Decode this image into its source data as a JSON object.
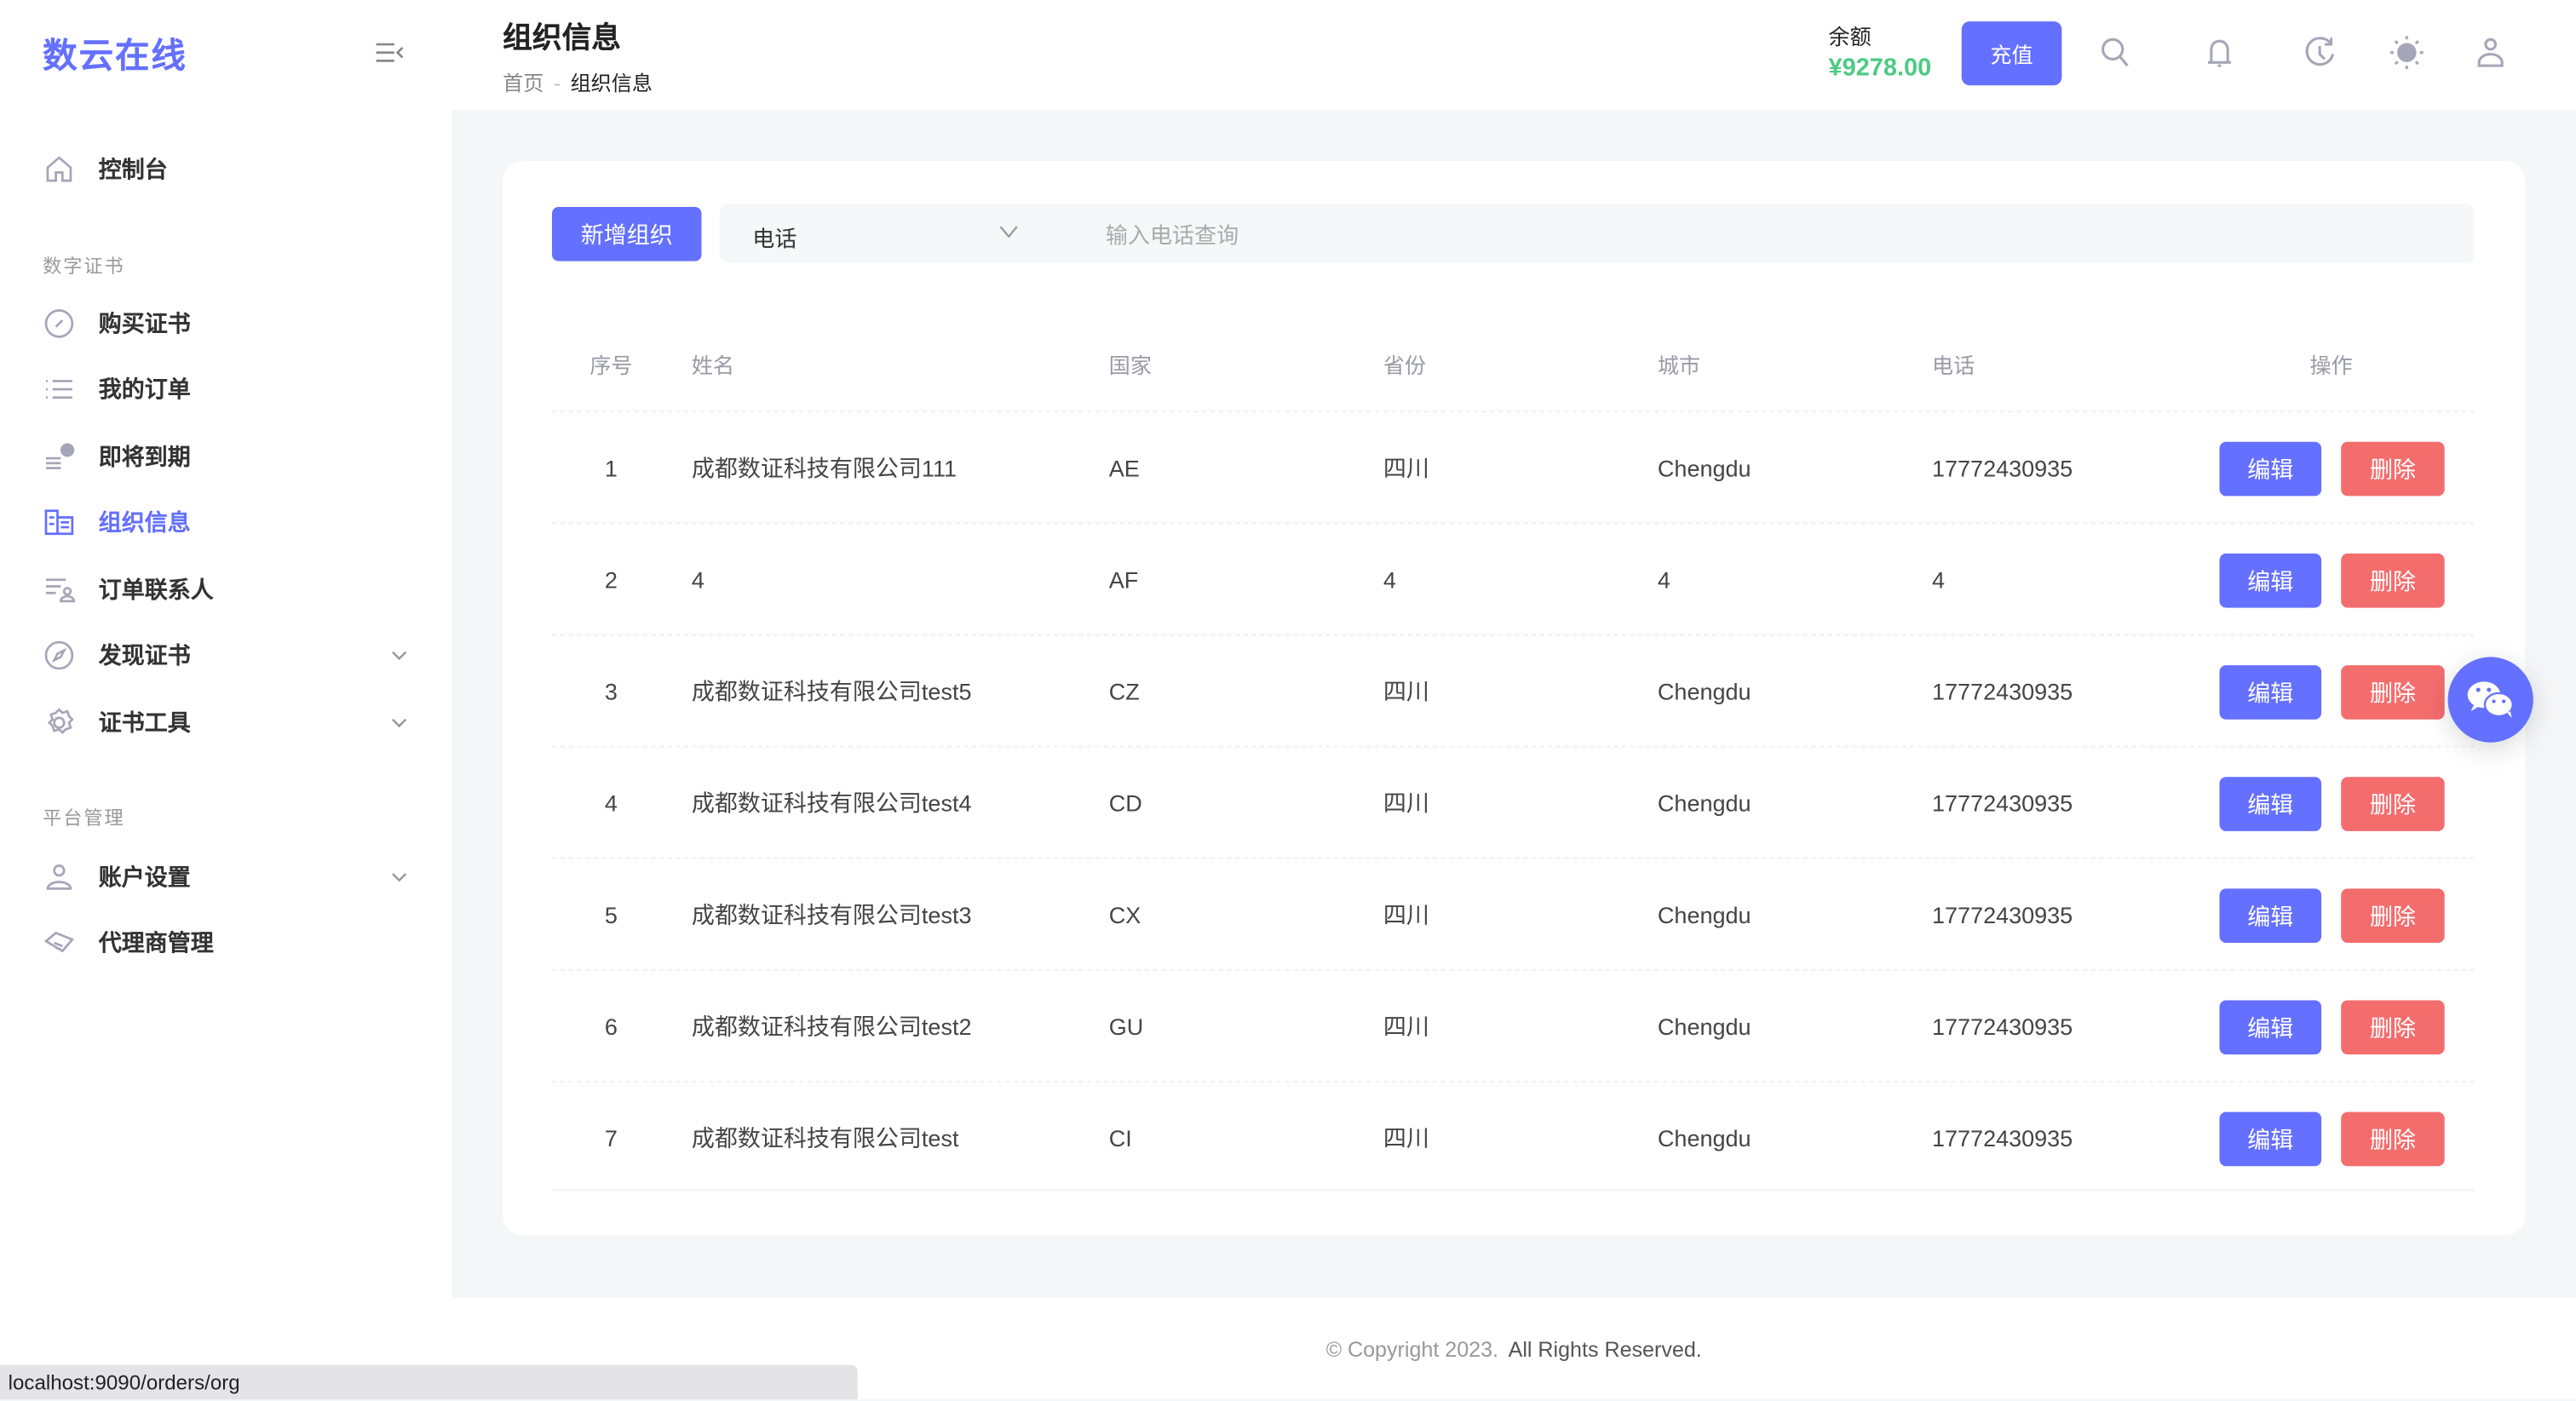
{
  "colors": {
    "accent": "#6470ff",
    "danger": "#f36d6d",
    "balance": "#4ccb83"
  },
  "sidebar": {
    "logo": "数云在线",
    "items": [
      {
        "label": "控制台",
        "icon": "home-icon"
      },
      {
        "section": "数字证书"
      },
      {
        "label": "购买证书",
        "icon": "edit-circle-icon"
      },
      {
        "label": "我的订单",
        "icon": "list-icon"
      },
      {
        "label": "即将到期",
        "icon": "alert-list-icon"
      },
      {
        "label": "组织信息",
        "icon": "organization-icon",
        "active": true
      },
      {
        "label": "订单联系人",
        "icon": "contact-list-icon"
      },
      {
        "label": "发现证书",
        "icon": "compass-icon",
        "expandable": true
      },
      {
        "label": "证书工具",
        "icon": "gear-icon",
        "expandable": true
      },
      {
        "section": "平台管理"
      },
      {
        "label": "账户设置",
        "icon": "user-icon",
        "expandable": true
      },
      {
        "label": "代理商管理",
        "icon": "handshake-icon"
      }
    ]
  },
  "header": {
    "title": "组织信息",
    "breadcrumb": {
      "home": "首页",
      "current": "组织信息"
    },
    "balance_label": "余额",
    "balance_value": "¥9278.00",
    "recharge": "充值",
    "icons": [
      "search-icon",
      "bell-icon",
      "history-icon",
      "sun-icon",
      "user-icon"
    ]
  },
  "toolbar": {
    "add": "新增组织",
    "filter_field": "电话",
    "search_placeholder": "输入电话查询"
  },
  "table": {
    "columns": [
      "序号",
      "姓名",
      "国家",
      "省份",
      "城市",
      "电话",
      "操作"
    ],
    "edit": "编辑",
    "delete": "删除",
    "rows": [
      [
        "1",
        "成都数证科技有限公司111",
        "AE",
        "四川",
        "Chengdu",
        "17772430935"
      ],
      [
        "2",
        "4",
        "AF",
        "4",
        "4",
        "4"
      ],
      [
        "3",
        "成都数证科技有限公司test5",
        "CZ",
        "四川",
        "Chengdu",
        "17772430935"
      ],
      [
        "4",
        "成都数证科技有限公司test4",
        "CD",
        "四川",
        "Chengdu",
        "17772430935"
      ],
      [
        "5",
        "成都数证科技有限公司test3",
        "CX",
        "四川",
        "Chengdu",
        "17772430935"
      ],
      [
        "6",
        "成都数证科技有限公司test2",
        "GU",
        "四川",
        "Chengdu",
        "17772430935"
      ],
      [
        "7",
        "成都数证科技有限公司test",
        "CI",
        "四川",
        "Chengdu",
        "17772430935"
      ]
    ]
  },
  "footer": {
    "copyright": "© Copyright 2023.",
    "rights": "All Rights Reserved."
  },
  "status_url": "localhost:9090/orders/org"
}
